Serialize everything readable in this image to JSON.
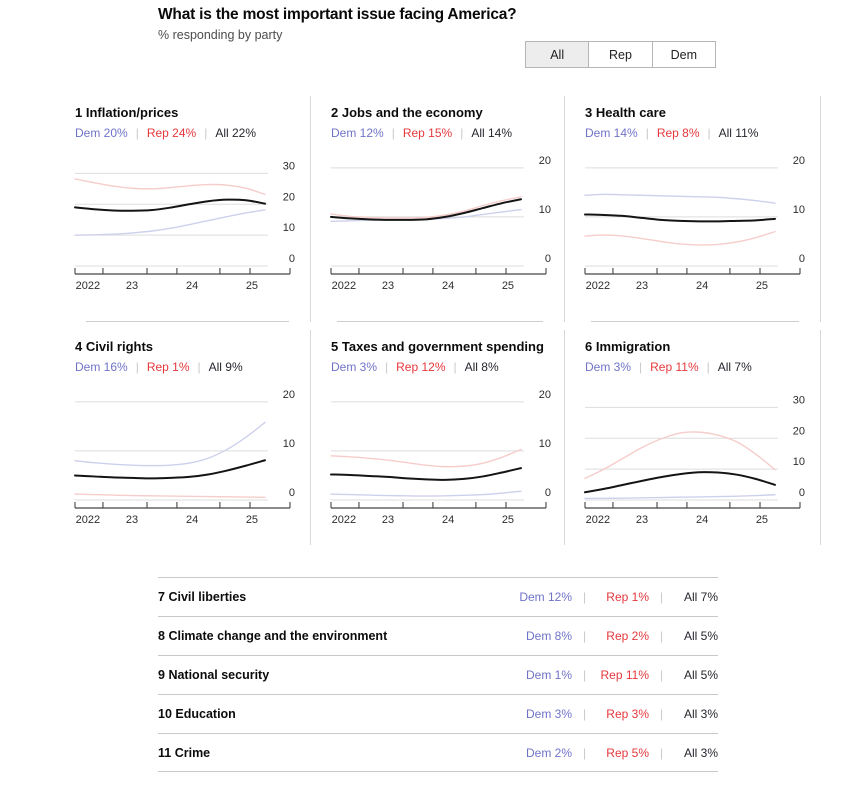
{
  "header": {
    "title": "What is the most important issue facing America?",
    "subtitle": "% responding by party",
    "tabs": [
      {
        "label": "All",
        "selected": true
      },
      {
        "label": "Rep",
        "selected": false
      },
      {
        "label": "Dem",
        "selected": false
      }
    ]
  },
  "legend_separator": "|",
  "colors": {
    "dem_text": "#6f73c8",
    "rep_text": "#e5383c",
    "all_text": "#26262e",
    "dem_line": "#ced1ec",
    "rep_line": "#f6cdcb",
    "all_line": "#141414",
    "grid": "#dddddd",
    "axis": "#444444",
    "tick_label": "#2d2d2d"
  },
  "chart_data": [
    {
      "type": "line",
      "rank": "1",
      "title": "Inflation/prices",
      "legend": {
        "dem": "Dem 20%",
        "rep": "Rep 24%",
        "all": "All 22%"
      },
      "x_labels": [
        "2022",
        "23",
        "24",
        "25"
      ],
      "y_ticks": [
        0,
        10,
        20,
        30
      ],
      "ylim": [
        0,
        35
      ],
      "series": [
        {
          "name": "Dem",
          "values": [
            10,
            10.1,
            10.3,
            10.7,
            11.3,
            12.2,
            13.4,
            14.7,
            16,
            17.2,
            18.2
          ]
        },
        {
          "name": "Rep",
          "values": [
            28.2,
            27,
            25.9,
            25.2,
            25,
            25.4,
            26,
            26.4,
            26.2,
            25.2,
            23.2
          ]
        },
        {
          "name": "All",
          "values": [
            19,
            18.4,
            18,
            17.9,
            18.1,
            18.9,
            20,
            21,
            21.5,
            21.3,
            20.2
          ]
        }
      ]
    },
    {
      "type": "line",
      "rank": "2",
      "title": "Jobs and the economy",
      "legend": {
        "dem": "Dem 12%",
        "rep": "Rep 15%",
        "all": "All 14%"
      },
      "x_labels": [
        "2022",
        "23",
        "24",
        "25"
      ],
      "y_ticks": [
        0,
        10,
        20
      ],
      "ylim": [
        0,
        22
      ],
      "series": [
        {
          "name": "Dem",
          "values": [
            9.1,
            9.2,
            9.3,
            9.4,
            9.4,
            9.5,
            9.7,
            10,
            10.5,
            11,
            11.5
          ]
        },
        {
          "name": "Rep",
          "values": [
            10.6,
            10.1,
            9.9,
            9.8,
            9.8,
            9.9,
            10.4,
            11.2,
            12.3,
            13.3,
            14.1
          ]
        },
        {
          "name": "All",
          "values": [
            10,
            9.7,
            9.5,
            9.4,
            9.4,
            9.5,
            10,
            10.8,
            11.8,
            12.8,
            13.6
          ]
        }
      ]
    },
    {
      "type": "line",
      "rank": "3",
      "title": "Health care",
      "legend": {
        "dem": "Dem 14%",
        "rep": "Rep 8%",
        "all": "All 11%"
      },
      "x_labels": [
        "2022",
        "23",
        "24",
        "25"
      ],
      "y_ticks": [
        0,
        10,
        20
      ],
      "ylim": [
        0,
        22
      ],
      "series": [
        {
          "name": "Dem",
          "values": [
            14.4,
            14.6,
            14.5,
            14.4,
            14.3,
            14.2,
            14.1,
            14,
            13.7,
            13.3,
            12.8
          ]
        },
        {
          "name": "Rep",
          "values": [
            6.1,
            6.3,
            6.1,
            5.6,
            5,
            4.5,
            4.3,
            4.4,
            4.9,
            5.8,
            7
          ]
        },
        {
          "name": "All",
          "values": [
            10.5,
            10.4,
            10.2,
            9.8,
            9.4,
            9.2,
            9.1,
            9.1,
            9.2,
            9.3,
            9.6
          ]
        }
      ]
    },
    {
      "type": "line",
      "rank": "4",
      "title": "Civil rights",
      "legend": {
        "dem": "Dem 16%",
        "rep": "Rep 1%",
        "all": "All 9%"
      },
      "x_labels": [
        "2022",
        "23",
        "24",
        "25"
      ],
      "y_ticks": [
        0,
        10,
        20
      ],
      "ylim": [
        0,
        22
      ],
      "series": [
        {
          "name": "Dem",
          "values": [
            8,
            7.6,
            7.3,
            7.1,
            7,
            7.1,
            7.5,
            8.5,
            10.3,
            12.8,
            15.8
          ]
        },
        {
          "name": "Rep",
          "values": [
            1.2,
            1.1,
            1,
            0.9,
            0.85,
            0.8,
            0.75,
            0.7,
            0.65,
            0.6,
            0.55
          ]
        },
        {
          "name": "All",
          "values": [
            5,
            4.8,
            4.6,
            4.5,
            4.4,
            4.5,
            4.7,
            5.2,
            6,
            7,
            8.1
          ]
        }
      ]
    },
    {
      "type": "line",
      "rank": "5",
      "title": "Taxes and government spending",
      "legend": {
        "dem": "Dem 3%",
        "rep": "Rep 12%",
        "all": "All 8%"
      },
      "x_labels": [
        "2022",
        "23",
        "24",
        "25"
      ],
      "y_ticks": [
        0,
        10,
        20
      ],
      "ylim": [
        0,
        22
      ],
      "series": [
        {
          "name": "Dem",
          "values": [
            1.2,
            1.1,
            1,
            0.9,
            0.85,
            0.8,
            0.85,
            0.95,
            1.1,
            1.4,
            1.8
          ]
        },
        {
          "name": "Rep",
          "values": [
            9,
            8.8,
            8.5,
            8.1,
            7.6,
            7.1,
            6.8,
            6.9,
            7.5,
            8.7,
            10.3
          ]
        },
        {
          "name": "All",
          "values": [
            5.2,
            5.1,
            4.9,
            4.7,
            4.4,
            4.2,
            4.1,
            4.3,
            4.8,
            5.6,
            6.5
          ]
        }
      ]
    },
    {
      "type": "line",
      "rank": "6",
      "title": "Immigration",
      "legend": {
        "dem": "Dem 3%",
        "rep": "Rep 11%",
        "all": "All 7%"
      },
      "x_labels": [
        "2022",
        "23",
        "24",
        "25"
      ],
      "y_ticks": [
        0,
        10,
        20,
        30
      ],
      "ylim": [
        0,
        35
      ],
      "series": [
        {
          "name": "Dem",
          "values": [
            0.5,
            0.55,
            0.6,
            0.7,
            0.8,
            0.9,
            1,
            1.1,
            1.25,
            1.45,
            1.7
          ]
        },
        {
          "name": "Rep",
          "values": [
            7,
            10,
            13.5,
            17,
            19.8,
            21.7,
            22,
            21,
            18.8,
            14.8,
            9.8
          ]
        },
        {
          "name": "All",
          "values": [
            2.5,
            3.6,
            4.9,
            6.2,
            7.4,
            8.4,
            9,
            8.9,
            8.2,
            6.8,
            4.9
          ]
        }
      ]
    }
  ],
  "table": {
    "rows": [
      {
        "rank": "7",
        "label": "Civil liberties",
        "dem": "Dem 12%",
        "rep": "Rep 1%",
        "all": "All 7%"
      },
      {
        "rank": "8",
        "label": "Climate change and the environment",
        "dem": "Dem 8%",
        "rep": "Rep 2%",
        "all": "All 5%"
      },
      {
        "rank": "9",
        "label": "National security",
        "dem": "Dem 1%",
        "rep": "Rep 11%",
        "all": "All 5%"
      },
      {
        "rank": "10",
        "label": "Education",
        "dem": "Dem 3%",
        "rep": "Rep 3%",
        "all": "All 3%"
      },
      {
        "rank": "11",
        "label": "Crime",
        "dem": "Dem 2%",
        "rep": "Rep 5%",
        "all": "All 3%"
      }
    ]
  }
}
